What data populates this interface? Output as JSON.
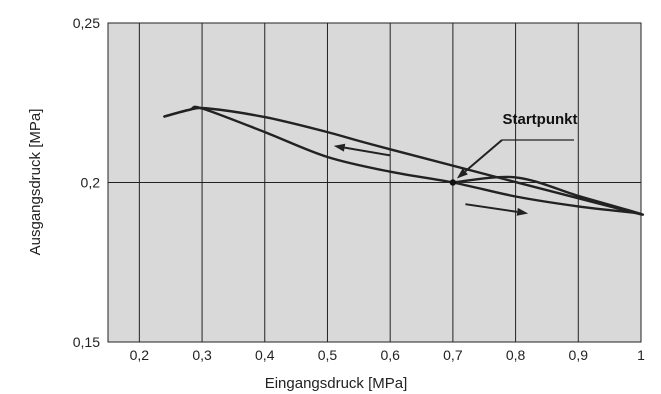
{
  "chart_data": {
    "type": "line",
    "xlabel": "Eingangsdruck [MPa]",
    "ylabel": "Ausgangsdruck [MPa]",
    "xlim": [
      0.15,
      1.0
    ],
    "ylim": [
      0.15,
      0.25
    ],
    "x_ticks": [
      {
        "value": 0.2,
        "label": "0,2"
      },
      {
        "value": 0.3,
        "label": "0,3"
      },
      {
        "value": 0.4,
        "label": "0,4"
      },
      {
        "value": 0.5,
        "label": "0,5"
      },
      {
        "value": 0.6,
        "label": "0,6"
      },
      {
        "value": 0.7,
        "label": "0,7"
      },
      {
        "value": 0.8,
        "label": "0,8"
      },
      {
        "value": 0.9,
        "label": "0,9"
      },
      {
        "value": 1.0,
        "label": "1"
      }
    ],
    "y_ticks": [
      {
        "value": 0.15,
        "label": "0,15"
      },
      {
        "value": 0.2,
        "label": "0,2"
      },
      {
        "value": 0.25,
        "label": "0,25"
      }
    ],
    "grid": true,
    "background": "#d9d9d9",
    "line_color": "#222222",
    "series": [
      {
        "values": [
          {
            "x": 0.7,
            "y": 0.2
          },
          {
            "x": 0.8,
            "y": 0.2016
          },
          {
            "x": 0.9,
            "y": 0.1958
          },
          {
            "x": 0.99,
            "y": 0.1905
          },
          {
            "x": 0.6,
            "y": 0.2104
          },
          {
            "x": 0.5,
            "y": 0.2158
          },
          {
            "x": 0.4,
            "y": 0.2205
          },
          {
            "x": 0.31,
            "y": 0.2232
          },
          {
            "x": 0.28,
            "y": 0.2228
          },
          {
            "x": 0.24,
            "y": 0.2207
          }
        ]
      },
      {
        "values": [
          {
            "x": 0.24,
            "y": 0.2207
          },
          {
            "x": 0.28,
            "y": 0.2228
          },
          {
            "x": 0.3,
            "y": 0.2232
          },
          {
            "x": 0.4,
            "y": 0.2158
          },
          {
            "x": 0.5,
            "y": 0.208
          },
          {
            "x": 0.6,
            "y": 0.2034
          },
          {
            "x": 0.7,
            "y": 0.2
          },
          {
            "x": 0.8,
            "y": 0.1956
          },
          {
            "x": 0.9,
            "y": 0.1925
          },
          {
            "x": 0.99,
            "y": 0.1905
          }
        ]
      }
    ],
    "annotations": [
      {
        "text": "Startpunkt",
        "x": 0.7,
        "y": 0.2
      }
    ],
    "arrows": [
      {
        "from": {
          "x": 0.6,
          "y": 0.2085
        },
        "to": {
          "x": 0.51,
          "y": 0.2115
        }
      },
      {
        "from": {
          "x": 0.72,
          "y": 0.1932
        },
        "to": {
          "x": 0.82,
          "y": 0.1903
        }
      }
    ]
  }
}
